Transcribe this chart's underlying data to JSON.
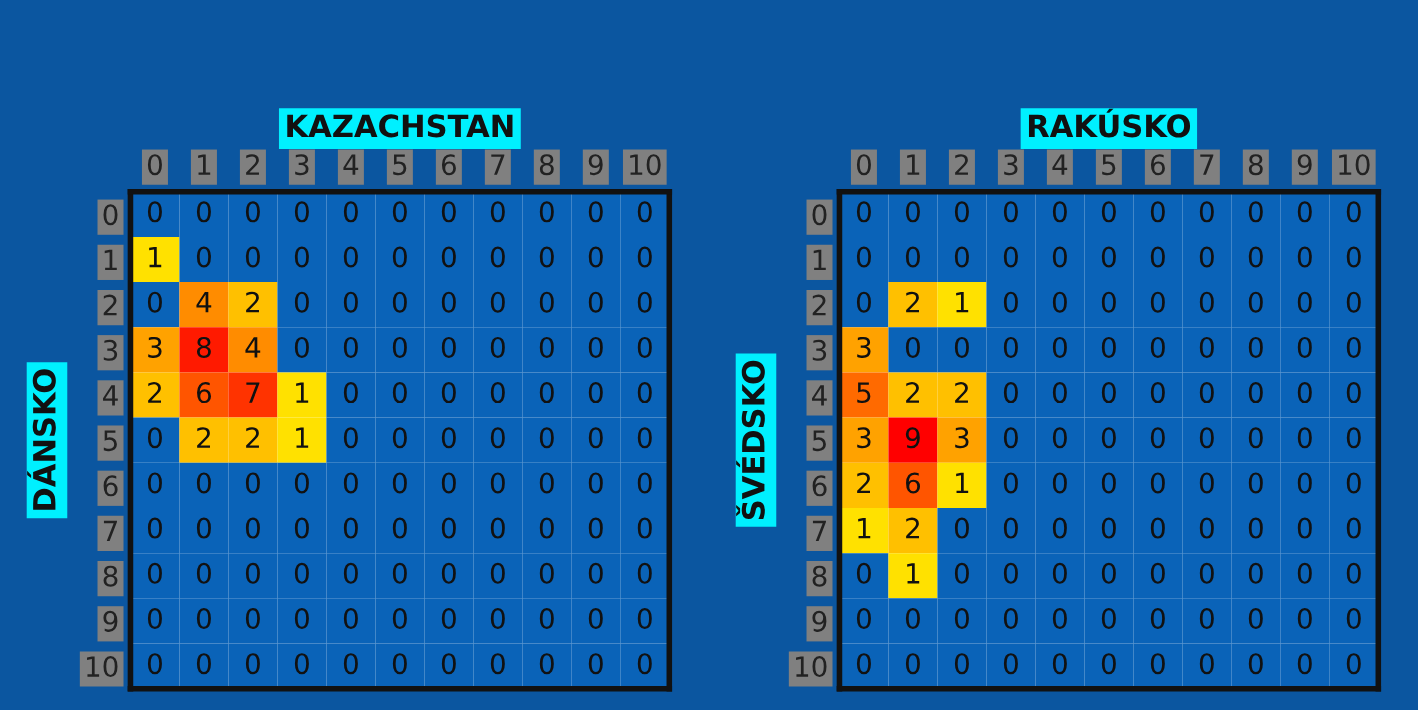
{
  "chart_data": [
    {
      "type": "heatmap",
      "xlabel": "KAZACHSTAN",
      "ylabel": "DÁNSKO",
      "data_labels": true,
      "categories": [
        "0",
        "1",
        "2",
        "3",
        "4",
        "5",
        "6",
        "7",
        "8",
        "9",
        "10"
      ],
      "y_categories": [
        "0",
        "1",
        "2",
        "3",
        "4",
        "5",
        "6",
        "7",
        "8",
        "9",
        "10"
      ],
      "cells": [
        [
          0,
          0,
          0,
          0,
          0,
          0,
          0,
          0,
          0,
          0,
          0
        ],
        [
          1,
          0,
          0,
          0,
          0,
          0,
          0,
          0,
          0,
          0,
          0
        ],
        [
          0,
          4,
          2,
          0,
          0,
          0,
          0,
          0,
          0,
          0,
          0
        ],
        [
          3,
          8,
          4,
          0,
          0,
          0,
          0,
          0,
          0,
          0,
          0
        ],
        [
          2,
          6,
          7,
          1,
          0,
          0,
          0,
          0,
          0,
          0,
          0
        ],
        [
          0,
          2,
          2,
          1,
          0,
          0,
          0,
          0,
          0,
          0,
          0
        ],
        [
          0,
          0,
          0,
          0,
          0,
          0,
          0,
          0,
          0,
          0,
          0
        ],
        [
          0,
          0,
          0,
          0,
          0,
          0,
          0,
          0,
          0,
          0,
          0
        ],
        [
          0,
          0,
          0,
          0,
          0,
          0,
          0,
          0,
          0,
          0,
          0
        ],
        [
          0,
          0,
          0,
          0,
          0,
          0,
          0,
          0,
          0,
          0,
          0
        ],
        [
          0,
          0,
          0,
          0,
          0,
          0,
          0,
          0,
          0,
          0,
          0
        ]
      ]
    },
    {
      "type": "heatmap",
      "xlabel": "RAKÚSKO",
      "ylabel": "ŠVÉDSKO",
      "data_labels": true,
      "categories": [
        "0",
        "1",
        "2",
        "3",
        "4",
        "5",
        "6",
        "7",
        "8",
        "9",
        "10"
      ],
      "y_categories": [
        "0",
        "1",
        "2",
        "3",
        "4",
        "5",
        "6",
        "7",
        "8",
        "9",
        "10"
      ],
      "cells": [
        [
          0,
          0,
          0,
          0,
          0,
          0,
          0,
          0,
          0,
          0,
          0
        ],
        [
          0,
          0,
          0,
          0,
          0,
          0,
          0,
          0,
          0,
          0,
          0
        ],
        [
          0,
          2,
          1,
          0,
          0,
          0,
          0,
          0,
          0,
          0,
          0
        ],
        [
          3,
          0,
          0,
          0,
          0,
          0,
          0,
          0,
          0,
          0,
          0
        ],
        [
          5,
          2,
          2,
          0,
          0,
          0,
          0,
          0,
          0,
          0,
          0
        ],
        [
          3,
          9,
          3,
          0,
          0,
          0,
          0,
          0,
          0,
          0,
          0
        ],
        [
          2,
          6,
          1,
          0,
          0,
          0,
          0,
          0,
          0,
          0,
          0
        ],
        [
          1,
          2,
          0,
          0,
          0,
          0,
          0,
          0,
          0,
          0,
          0
        ],
        [
          0,
          1,
          0,
          0,
          0,
          0,
          0,
          0,
          0,
          0,
          0
        ],
        [
          0,
          0,
          0,
          0,
          0,
          0,
          0,
          0,
          0,
          0,
          0
        ],
        [
          0,
          0,
          0,
          0,
          0,
          0,
          0,
          0,
          0,
          0,
          0
        ]
      ]
    }
  ]
}
